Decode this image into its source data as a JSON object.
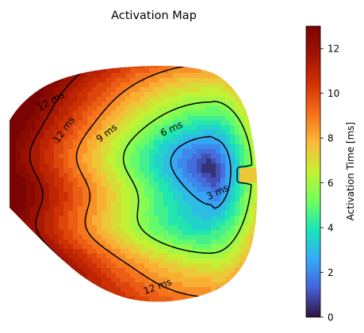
{
  "chart_data": {
    "type": "heatmap",
    "title": "Activation Map",
    "xlabel": "",
    "ylabel": "",
    "colormap": "turbo",
    "colorbar": {
      "label": "Activation Time [ms]",
      "range": [
        0,
        13
      ],
      "ticks": [
        0,
        2,
        4,
        6,
        8,
        10,
        12
      ],
      "tick_labels": [
        "0",
        "2",
        "4",
        "6",
        "8",
        "10",
        "12"
      ]
    },
    "early_activation_site": {
      "value_ms": 0.5
    },
    "contour_levels_ms": [
      3,
      6,
      9,
      12
    ],
    "contour_labels": [
      {
        "text": "3 ms",
        "level": 3
      },
      {
        "text": "6 ms",
        "level": 6
      },
      {
        "text": "9 ms",
        "level": 9
      },
      {
        "text": "12 ms",
        "level": 12
      },
      {
        "text": "12 ms",
        "level": 12
      },
      {
        "text": "12 ms",
        "level": 12
      }
    ],
    "value_range_ms": [
      0,
      13
    ]
  }
}
